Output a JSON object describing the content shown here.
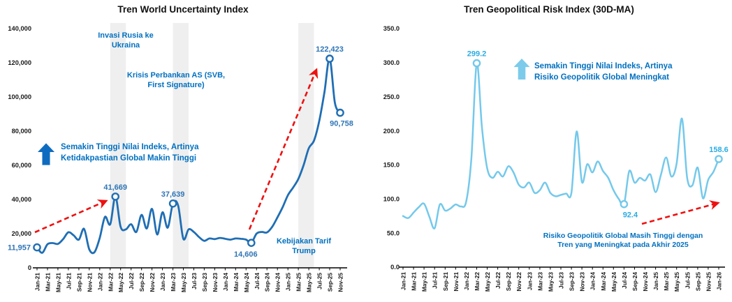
{
  "page": {
    "background": "#FFFFFF"
  },
  "chart_data": [
    {
      "type": "line",
      "title": "Tren World Uncertainty Index",
      "x": [
        "Jan-21",
        "Feb-21",
        "Mar-21",
        "Apr-21",
        "May-21",
        "Jun-21",
        "Jul-21",
        "Aug-21",
        "Sep-21",
        "Oct-21",
        "Nov-21",
        "Dec-21",
        "Jan-22",
        "Feb-22",
        "Mar-22",
        "Apr-22",
        "May-22",
        "Jun-22",
        "Jul-22",
        "Aug-22",
        "Sep-22",
        "Oct-22",
        "Nov-22",
        "Dec-22",
        "Jan-23",
        "Feb-23",
        "Mar-23",
        "Apr-23",
        "May-23",
        "Jun-23",
        "Jul-23",
        "Aug-23",
        "Sep-23",
        "Oct-23",
        "Nov-23",
        "Dec-23",
        "Jan-24",
        "Feb-24",
        "Mar-24",
        "Apr-24",
        "May-24",
        "Jun-24",
        "Jul-24",
        "Aug-24",
        "Sep-24",
        "Oct-24",
        "Nov-24",
        "Dec-24",
        "Jan-25",
        "Feb-25",
        "Mar-25",
        "Apr-25",
        "May-25",
        "Jun-25",
        "Jul-25",
        "Aug-25",
        "Sep-25",
        "Oct-25",
        "Nov-25"
      ],
      "x_tick_labels": [
        "Jan-21",
        "Mar-21",
        "May-21",
        "Jul-21",
        "Sep-21",
        "Nov-21",
        "Jan-22",
        "Mar-22",
        "May-22",
        "Jul-22",
        "Sep-22",
        "Nov-22",
        "Jan-23",
        "Mar-23",
        "May-23",
        "Jul-23",
        "Sep-23",
        "Nov-23",
        "Jan-24",
        "Mar-24",
        "May-24",
        "Jul-24",
        "Sep-24",
        "Nov-24",
        "Jan-25",
        "Mar-25",
        "May-25",
        "Jul-25",
        "Sep-25",
        "Nov-25"
      ],
      "values": [
        11957,
        8800,
        13800,
        14500,
        14000,
        16800,
        20800,
        19000,
        16500,
        22800,
        10800,
        9200,
        17500,
        29800,
        25500,
        41669,
        24000,
        22500,
        25500,
        21000,
        31000,
        23000,
        34500,
        19500,
        32500,
        23500,
        37639,
        36500,
        17000,
        22500,
        21000,
        18000,
        15800,
        17200,
        16800,
        17500,
        17000,
        16500,
        17200,
        17000,
        16500,
        14606,
        20000,
        21000,
        20700,
        24000,
        29500,
        35500,
        42500,
        47000,
        52000,
        60000,
        70000,
        74500,
        86000,
        103000,
        122423,
        96500,
        90758
      ],
      "ylim": [
        0,
        140000
      ],
      "y_tick_values": [
        0,
        20000,
        40000,
        60000,
        80000,
        100000,
        120000,
        140000
      ],
      "y_tick_labels": [
        "0",
        "20,000",
        "40,000",
        "60,000",
        "80,000",
        "100,000",
        "120,000",
        "140,000"
      ],
      "line_color": "#1F6EB4",
      "marker_fill": "#FFFFFF",
      "value_label_color": "#2E75B6",
      "band_color": "#EFEFEF",
      "trend_arrow_color": "#EE1111",
      "annotation_color": "#0070C0",
      "arrow_icon_color": "#0E6CC0",
      "markers": [
        {
          "x": "Jan-21",
          "value": 11957,
          "label": "11,957",
          "label_pos": "left"
        },
        {
          "x": "Apr-22",
          "value": 41669,
          "label": "41,669",
          "label_pos": "above"
        },
        {
          "x": "Mar-23",
          "value": 37639,
          "label": "37,639",
          "label_pos": "above"
        },
        {
          "x": "Jun-24",
          "value": 14606,
          "label": "14,606",
          "label_pos": "below-left"
        },
        {
          "x": "Sep-25",
          "value": 122423,
          "label": "122,423",
          "label_pos": "above"
        },
        {
          "x": "Nov-25",
          "value": 90758,
          "label": "90,758",
          "label_pos": "below"
        }
      ],
      "shaded_bands": [
        {
          "from": "Mar-22",
          "to": "Jun-22"
        },
        {
          "from": "Mar-23",
          "to": "Jun-23"
        },
        {
          "from": "Mar-25",
          "to": "Jun-25"
        }
      ],
      "annotations": {
        "event_1": "Invasi Rusia ke\nUkraina",
        "event_2": "Krisis Perbankan AS (SVB,\nFirst Signature)",
        "legend_note": "Semakin Tinggi Nilai Indeks, Artinya\nKetidakpastian Global Makin Tinggi",
        "event_3": "Kebijakan Tarif\nTrump"
      }
    },
    {
      "type": "line",
      "title": "Tren Geopolitical Risk Index (30D-MA)",
      "x": [
        "Jan-21",
        "Feb-21",
        "Mar-21",
        "Apr-21",
        "May-21",
        "Jun-21",
        "Jul-21",
        "Aug-21",
        "Sep-21",
        "Oct-21",
        "Nov-21",
        "Dec-21",
        "Jan-22",
        "Feb-22",
        "Mar-22",
        "Apr-22",
        "May-22",
        "Jun-22",
        "Jul-22",
        "Aug-22",
        "Sep-22",
        "Oct-22",
        "Nov-22",
        "Dec-22",
        "Jan-23",
        "Feb-23",
        "Mar-23",
        "Apr-23",
        "May-23",
        "Jun-23",
        "Jul-23",
        "Aug-23",
        "Sep-23",
        "Oct-23",
        "Nov-23",
        "Dec-23",
        "Jan-24",
        "Feb-24",
        "Mar-24",
        "Apr-24",
        "May-24",
        "Jun-24",
        "Jul-24",
        "Aug-24",
        "Sep-24",
        "Oct-24",
        "Nov-24",
        "Dec-24",
        "Jan-25",
        "Feb-25",
        "Mar-25",
        "Apr-25",
        "May-25",
        "Jun-25",
        "Jul-25",
        "Aug-25",
        "Sep-25",
        "Oct-25",
        "Nov-25",
        "Dec-25",
        "Jan-26"
      ],
      "x_tick_labels": [
        "Jan-21",
        "Mar-21",
        "May-21",
        "Jul-21",
        "Sep-21",
        "Nov-21",
        "Jan-22",
        "Mar-22",
        "May-22",
        "Jul-22",
        "Sep-22",
        "Nov-22",
        "Jan-23",
        "Mar-23",
        "May-23",
        "Jul-23",
        "Sep-23",
        "Nov-23",
        "Jan-24",
        "Mar-24",
        "May-24",
        "Jul-24",
        "Sep-24",
        "Nov-24",
        "Jan-25",
        "Mar-25",
        "May-25",
        "Jul-25",
        "Sep-25",
        "Nov-25",
        "Jan-26"
      ],
      "values": [
        75,
        72,
        80,
        88,
        93,
        74,
        57,
        92,
        83,
        86,
        92,
        89,
        96,
        160,
        299.2,
        205,
        145,
        131,
        140,
        133,
        148,
        139,
        121,
        117,
        124,
        109,
        113,
        124,
        109,
        104,
        106,
        108,
        109,
        199,
        125,
        151,
        139,
        155,
        141,
        131,
        113,
        100,
        92.4,
        141,
        124,
        131,
        127,
        136,
        110,
        135,
        161,
        133,
        152,
        218,
        131,
        120,
        146,
        101,
        128,
        140,
        158.6
      ],
      "ylim": [
        0,
        350
      ],
      "y_tick_values": [
        0,
        50,
        100,
        150,
        200,
        250,
        300,
        350
      ],
      "y_tick_labels": [
        "0.0",
        "50.0",
        "100.0",
        "150.0",
        "200.0",
        "250.0",
        "300.0",
        "350.0"
      ],
      "line_color": "#74C9EB",
      "marker_fill": "#FFFFFF",
      "value_label_color": "#29ABE2",
      "band_color": "#EFEFEF",
      "trend_arrow_color": "#EE1111",
      "annotation_color": "#0070C0",
      "arrow_icon_color": "#7CCBEB",
      "markers": [
        {
          "x": "Mar-22",
          "value": 299.2,
          "label": "299.2",
          "label_pos": "above"
        },
        {
          "x": "Jul-24",
          "value": 92.4,
          "label": "92.4",
          "label_pos": "below-right"
        },
        {
          "x": "Jan-26",
          "value": 158.6,
          "label": "158.6",
          "label_pos": "above"
        }
      ],
      "shaded_bands": [],
      "annotations": {
        "legend_note": "Semakin Tinggi Nilai Indeks, Artinya\nRisiko Geopolitik Global Meningkat",
        "trend_note": "Risiko Geopolitik Global Masih Tinggi dengan\nTren yang Meningkat pada Akhir 2025"
      }
    }
  ]
}
